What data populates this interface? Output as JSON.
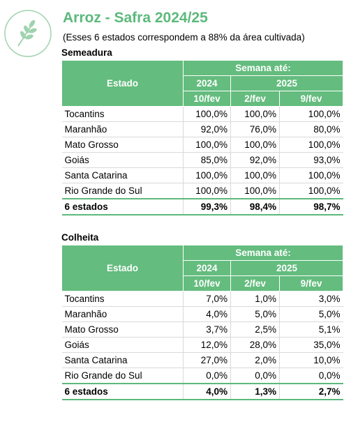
{
  "header": {
    "title": "Arroz - Safra 2024/25",
    "subtitle": "(Esses 6 estados correspondem a 88% da área cultivada)"
  },
  "tables": [
    {
      "title": "Semeadura",
      "state_header": "Estado",
      "week_header": "Semana até:",
      "years": [
        "2024",
        "2025"
      ],
      "dates": [
        "10/fev",
        "2/fev",
        "9/fev"
      ],
      "rows": [
        [
          "Tocantins",
          "100,0%",
          "100,0%",
          "100,0%"
        ],
        [
          "Maranhão",
          "92,0%",
          "76,0%",
          "80,0%"
        ],
        [
          "Mato Grosso",
          "100,0%",
          "100,0%",
          "100,0%"
        ],
        [
          "Goiás",
          "85,0%",
          "92,0%",
          "93,0%"
        ],
        [
          "Santa Catarina",
          "100,0%",
          "100,0%",
          "100,0%"
        ],
        [
          "Rio Grande do Sul",
          "100,0%",
          "100,0%",
          "100,0%"
        ]
      ],
      "total": [
        "6 estados",
        "99,3%",
        "98,4%",
        "98,7%"
      ]
    },
    {
      "title": "Colheita",
      "state_header": "Estado",
      "week_header": "Semana até:",
      "years": [
        "2024",
        "2025"
      ],
      "dates": [
        "10/fev",
        "2/fev",
        "9/fev"
      ],
      "rows": [
        [
          "Tocantins",
          "7,0%",
          "1,0%",
          "3,0%"
        ],
        [
          "Maranhão",
          "4,0%",
          "5,0%",
          "5,0%"
        ],
        [
          "Mato Grosso",
          "3,7%",
          "2,5%",
          "5,1%"
        ],
        [
          "Goiás",
          "12,0%",
          "28,0%",
          "35,0%"
        ],
        [
          "Santa Catarina",
          "27,0%",
          "2,0%",
          "10,0%"
        ],
        [
          "Rio Grande do Sul",
          "0,0%",
          "0,0%",
          "0,0%"
        ]
      ],
      "total": [
        "6 estados",
        "4,0%",
        "1,3%",
        "2,7%"
      ]
    }
  ]
}
